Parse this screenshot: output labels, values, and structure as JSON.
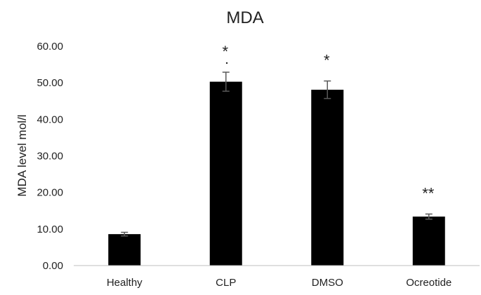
{
  "chart_data": {
    "type": "bar",
    "title": "MDA",
    "xlabel": "",
    "ylabel": "MDA level mol/l",
    "categories": [
      "Healthy",
      "CLP",
      "DMSO",
      "Ocreotide"
    ],
    "values": [
      8.6,
      50.3,
      48.1,
      13.4
    ],
    "errors": [
      0.5,
      2.6,
      2.4,
      0.7
    ],
    "annotations": [
      "",
      "*",
      "*",
      "**"
    ],
    "ylim": [
      0,
      60
    ],
    "yticks": [
      "0.00",
      "10.00",
      "20.00",
      "30.00",
      "40.00",
      "50.00",
      "60.00"
    ],
    "grid": false,
    "legend": "none",
    "bar_color": "#000000",
    "error_color": "#595959"
  }
}
